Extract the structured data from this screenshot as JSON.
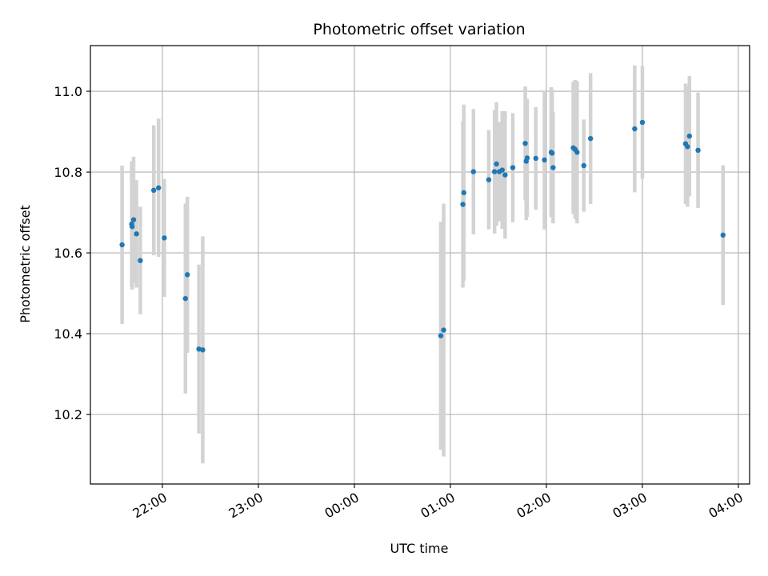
{
  "chart_data": {
    "type": "scatter",
    "title": "Photometric offset variation",
    "xlabel": "UTC time",
    "ylabel": "Photometric offset",
    "x_unit": "UTC time, hours relative to 00:00 of the second day",
    "xlim": [
      -2.75,
      4.117
    ],
    "ylim": [
      10.028,
      11.113
    ],
    "grid": true,
    "x_ticks": [
      {
        "value": -2,
        "label": "22:00"
      },
      {
        "value": -1,
        "label": "23:00"
      },
      {
        "value": 0,
        "label": "00:00"
      },
      {
        "value": 1,
        "label": "01:00"
      },
      {
        "value": 2,
        "label": "02:00"
      },
      {
        "value": 3,
        "label": "03:00"
      },
      {
        "value": 4,
        "label": "04:00"
      }
    ],
    "y_ticks": [
      {
        "value": 10.2,
        "label": "10.2"
      },
      {
        "value": 10.4,
        "label": "10.4"
      },
      {
        "value": 10.6,
        "label": "10.6"
      },
      {
        "value": 10.8,
        "label": "10.8"
      },
      {
        "value": 11.0,
        "label": "11.0"
      }
    ],
    "colors": {
      "point": "#1f77b4",
      "errorbar": "#d3d3d3",
      "grid": "#b0b0b0"
    },
    "points": [
      {
        "x": -2.42,
        "y": 10.62,
        "err": 0.196
      },
      {
        "x": -2.32,
        "y": 10.671,
        "err": 0.156
      },
      {
        "x": -2.315,
        "y": 10.665,
        "err": 0.156
      },
      {
        "x": -2.3,
        "y": 10.682,
        "err": 0.156
      },
      {
        "x": -2.27,
        "y": 10.647,
        "err": 0.133
      },
      {
        "x": -2.23,
        "y": 10.581,
        "err": 0.133
      },
      {
        "x": -2.09,
        "y": 10.755,
        "err": 0.161
      },
      {
        "x": -2.04,
        "y": 10.761,
        "err": 0.171
      },
      {
        "x": -1.98,
        "y": 10.637,
        "err": 0.146
      },
      {
        "x": -1.76,
        "y": 10.487,
        "err": 0.235
      },
      {
        "x": -1.74,
        "y": 10.546,
        "err": 0.193
      },
      {
        "x": -1.62,
        "y": 10.362,
        "err": 0.209
      },
      {
        "x": -1.58,
        "y": 10.36,
        "err": 0.281
      },
      {
        "x": 0.9,
        "y": 10.395,
        "err": 0.282
      },
      {
        "x": 0.93,
        "y": 10.409,
        "err": 0.313
      },
      {
        "x": 1.13,
        "y": 10.72,
        "err": 0.206
      },
      {
        "x": 1.14,
        "y": 10.749,
        "err": 0.218
      },
      {
        "x": 1.24,
        "y": 10.801,
        "err": 0.155
      },
      {
        "x": 1.4,
        "y": 10.781,
        "err": 0.123
      },
      {
        "x": 1.46,
        "y": 10.801,
        "err": 0.153
      },
      {
        "x": 1.48,
        "y": 10.82,
        "err": 0.153
      },
      {
        "x": 1.51,
        "y": 10.801,
        "err": 0.123
      },
      {
        "x": 1.54,
        "y": 10.805,
        "err": 0.146
      },
      {
        "x": 1.57,
        "y": 10.793,
        "err": 0.158
      },
      {
        "x": 1.65,
        "y": 10.811,
        "err": 0.135
      },
      {
        "x": 1.78,
        "y": 10.871,
        "err": 0.141
      },
      {
        "x": 1.79,
        "y": 10.827,
        "err": 0.146
      },
      {
        "x": 1.8,
        "y": 10.835,
        "err": 0.146
      },
      {
        "x": 1.89,
        "y": 10.834,
        "err": 0.127
      },
      {
        "x": 1.98,
        "y": 10.83,
        "err": 0.172
      },
      {
        "x": 2.05,
        "y": 10.849,
        "err": 0.161
      },
      {
        "x": 2.06,
        "y": 10.847,
        "err": 0.158
      },
      {
        "x": 2.07,
        "y": 10.811,
        "err": 0.138
      },
      {
        "x": 2.28,
        "y": 10.86,
        "err": 0.164
      },
      {
        "x": 2.3,
        "y": 10.856,
        "err": 0.172
      },
      {
        "x": 2.32,
        "y": 10.849,
        "err": 0.176
      },
      {
        "x": 2.39,
        "y": 10.816,
        "err": 0.114
      },
      {
        "x": 2.46,
        "y": 10.883,
        "err": 0.162
      },
      {
        "x": 2.92,
        "y": 10.907,
        "err": 0.157
      },
      {
        "x": 3.0,
        "y": 10.923,
        "err": 0.14
      },
      {
        "x": 3.45,
        "y": 10.87,
        "err": 0.149
      },
      {
        "x": 3.47,
        "y": 10.863,
        "err": 0.149
      },
      {
        "x": 3.49,
        "y": 10.889,
        "err": 0.149
      },
      {
        "x": 3.58,
        "y": 10.854,
        "err": 0.143
      },
      {
        "x": 3.84,
        "y": 10.644,
        "err": 0.173
      }
    ]
  }
}
